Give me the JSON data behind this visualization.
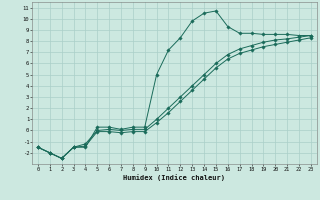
{
  "xlabel": "Humidex (Indice chaleur)",
  "bg_color": "#cce8e0",
  "grid_color": "#aacfc8",
  "line_color": "#1a6b5a",
  "xlim": [
    -0.5,
    23.5
  ],
  "ylim": [
    -3,
    11.5
  ],
  "xticks": [
    0,
    1,
    2,
    3,
    4,
    5,
    6,
    7,
    8,
    9,
    10,
    11,
    12,
    13,
    14,
    15,
    16,
    17,
    18,
    19,
    20,
    21,
    22,
    23
  ],
  "yticks": [
    -2,
    -1,
    0,
    1,
    2,
    3,
    4,
    5,
    6,
    7,
    8,
    9,
    10,
    11
  ],
  "curve1_x": [
    0,
    1,
    2,
    3,
    4,
    5,
    6,
    7,
    8,
    9,
    10,
    11,
    12,
    13,
    14,
    15,
    16,
    17,
    18,
    19,
    20,
    21,
    22,
    23
  ],
  "curve1_y": [
    -1.5,
    -2.0,
    -2.5,
    -1.5,
    -1.5,
    0.3,
    0.3,
    0.1,
    0.3,
    0.3,
    5.0,
    7.2,
    8.3,
    9.8,
    10.5,
    10.7,
    9.3,
    8.7,
    8.7,
    8.6,
    8.6,
    8.6,
    8.5,
    8.5
  ],
  "curve2_x": [
    0,
    1,
    2,
    3,
    4,
    5,
    6,
    7,
    8,
    9,
    10,
    11,
    12,
    13,
    14,
    15,
    16,
    17,
    18,
    19,
    20,
    21,
    22,
    23
  ],
  "curve2_y": [
    -1.5,
    -2.0,
    -2.5,
    -1.5,
    -1.2,
    0.0,
    0.1,
    0.0,
    0.1,
    0.1,
    1.0,
    2.0,
    3.0,
    4.0,
    5.0,
    6.0,
    6.8,
    7.3,
    7.6,
    7.9,
    8.1,
    8.2,
    8.35,
    8.5
  ],
  "curve3_x": [
    0,
    1,
    2,
    3,
    4,
    5,
    6,
    7,
    8,
    9,
    10,
    11,
    12,
    13,
    14,
    15,
    16,
    17,
    18,
    19,
    20,
    21,
    22,
    23
  ],
  "curve3_y": [
    -1.5,
    -2.0,
    -2.5,
    -1.5,
    -1.4,
    -0.1,
    -0.1,
    -0.2,
    -0.1,
    -0.1,
    0.7,
    1.6,
    2.6,
    3.6,
    4.6,
    5.6,
    6.4,
    6.9,
    7.2,
    7.5,
    7.7,
    7.9,
    8.1,
    8.3
  ]
}
